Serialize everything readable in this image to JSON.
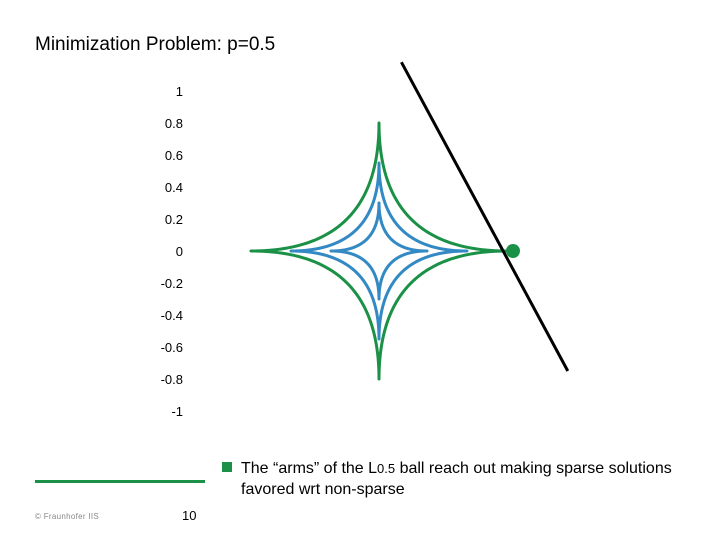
{
  "slide": {
    "title": "Minimization Problem: p=0.5",
    "bullet": {
      "text_before": "The “arms” of the L",
      "subscript": "0.5",
      "text_after": " ball reach out making sparse solutions favored wrt non-sparse"
    },
    "footer": {
      "copyright": "© Fraunhofer IIS",
      "page_number": "10"
    },
    "colors": {
      "accent": "#1a9146",
      "inner_curves": "#3389c4",
      "line": "#000000"
    }
  },
  "chart_data": {
    "type": "line",
    "title": "Minimization Problem: p=0.5",
    "xlabel": "",
    "ylabel": "",
    "ylim": [
      -1,
      1
    ],
    "yticks": [
      1,
      0.8,
      0.6,
      0.4,
      0.2,
      0,
      -0.2,
      -0.4,
      -0.6,
      -0.8,
      -1
    ],
    "ytick_labels": [
      "1",
      "0.8",
      "0.6",
      "0.4",
      "0.2",
      "0",
      "-0.2",
      "-0.4",
      "-0.6",
      "-0.8",
      "-1"
    ],
    "grid": false,
    "p": 0.5,
    "series": [
      {
        "role": "inner-ball",
        "radius": 0.3,
        "color": "#3389c4"
      },
      {
        "role": "middle-ball",
        "radius": 0.55,
        "color": "#3389c4"
      },
      {
        "role": "outer-ball",
        "radius": 0.8,
        "color": "#1a9146"
      },
      {
        "role": "constraint-line",
        "points": [
          [
            0.14,
            1.18
          ],
          [
            1.18,
            -0.75
          ]
        ],
        "color": "#000000"
      }
    ],
    "highlight_point": {
      "x": 0.8,
      "y": 0,
      "color": "#1a9146"
    }
  }
}
